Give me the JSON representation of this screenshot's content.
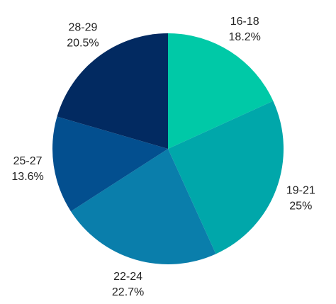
{
  "chart_data": {
    "type": "pie",
    "categories": [
      "16-18",
      "19-21",
      "22-24",
      "25-27",
      "28-29"
    ],
    "values": [
      18.2,
      25,
      22.7,
      13.6,
      20.5
    ],
    "value_labels": [
      "18.2%",
      "25%",
      "22.7%",
      "13.6%",
      "20.5%"
    ],
    "colors": [
      "#00c9a7",
      "#00a7aa",
      "#0a7eab",
      "#034f8f",
      "#022a61"
    ]
  }
}
